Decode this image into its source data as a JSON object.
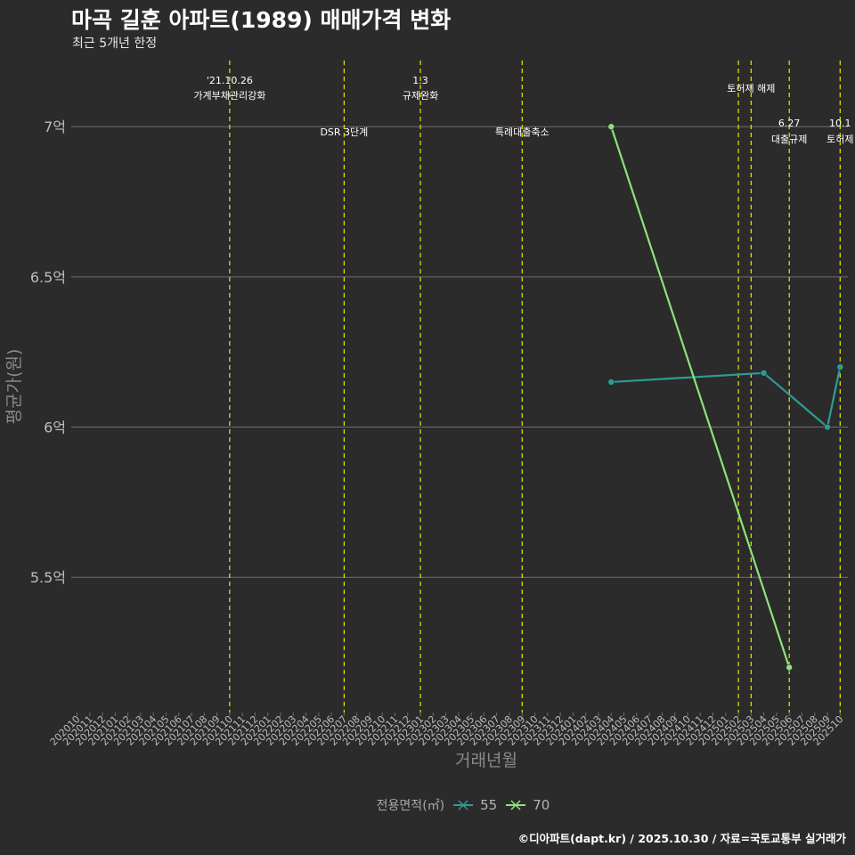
{
  "header": {
    "title": "마곡 길훈 아파트(1989) 매매가격 변화",
    "subtitle": "최근 5개년 한정"
  },
  "caption": "©디아파트(dapt.kr) / 2025.10.30 / 자료=국토교통부 실거래가",
  "colors": {
    "background": "#2b2b2b",
    "grid": "#6e6e6e",
    "event_line": "#e6e600",
    "series_55": "#2e9c94",
    "series_70": "#8ee27b",
    "axis_text": "#bdbdbd",
    "label_text": "#ffffff"
  },
  "legend": {
    "title": "전용면적(㎡)",
    "items": [
      {
        "name": "55",
        "color": "#2e9c94"
      },
      {
        "name": "70",
        "color": "#8ee27b"
      }
    ]
  },
  "chart_data": {
    "type": "line",
    "title": "마곡 길훈 아파트(1989) 매매가격 변화",
    "subtitle": "최근 5개년 한정",
    "xlabel": "거래년월",
    "ylabel": "평균가(원)",
    "ylim": [
      5.05,
      7.22
    ],
    "y_ticks": [
      5.5,
      6.0,
      6.5,
      7.0
    ],
    "y_tick_labels": [
      "5.5억",
      "6억",
      "6.5억",
      "7억"
    ],
    "grid": true,
    "legend_position": "bottom",
    "categories": [
      "202010",
      "202011",
      "202012",
      "202101",
      "202102",
      "202103",
      "202104",
      "202105",
      "202106",
      "202107",
      "202108",
      "202109",
      "202110",
      "202111",
      "202112",
      "202201",
      "202202",
      "202203",
      "202204",
      "202205",
      "202206",
      "202207",
      "202208",
      "202209",
      "202210",
      "202211",
      "202212",
      "202301",
      "202302",
      "202303",
      "202304",
      "202305",
      "202306",
      "202307",
      "202308",
      "202309",
      "202310",
      "202311",
      "202312",
      "202401",
      "202402",
      "202403",
      "202404",
      "202405",
      "202406",
      "202407",
      "202408",
      "202409",
      "202410",
      "202411",
      "202412",
      "202501",
      "202502",
      "202503",
      "202504",
      "202505",
      "202506",
      "202507",
      "202508",
      "202509",
      "202510"
    ],
    "series": [
      {
        "name": "55",
        "points": [
          {
            "x": "202404",
            "y": 6.15
          },
          {
            "x": "202504",
            "y": 6.18
          },
          {
            "x": "202509",
            "y": 6.0
          },
          {
            "x": "202510",
            "y": 6.2
          }
        ]
      },
      {
        "name": "70",
        "points": [
          {
            "x": "202404",
            "y": 7.0
          },
          {
            "x": "202506",
            "y": 5.2
          }
        ]
      }
    ],
    "events": [
      {
        "x": 12.0,
        "date": "'21.10.26",
        "label": "가계부채관리강화",
        "row": "top"
      },
      {
        "x": 21.0,
        "date": "",
        "label": "DSR 3단계",
        "row": "mid"
      },
      {
        "x": 27.0,
        "date": "1.3",
        "label": "규제완화",
        "row": "top"
      },
      {
        "x": 35.0,
        "date": "",
        "label": "특례대출축소",
        "row": "mid"
      },
      {
        "x": 52.0,
        "date": "",
        "label": "",
        "row": "none"
      },
      {
        "x": 53.0,
        "date": "",
        "label": "토허제 해제",
        "row": "upper"
      },
      {
        "x": 56.0,
        "date": "6.27",
        "label": "대출규제",
        "row": "low"
      },
      {
        "x": 60.0,
        "date": "10.1",
        "label": "토허제",
        "row": "low"
      }
    ]
  }
}
